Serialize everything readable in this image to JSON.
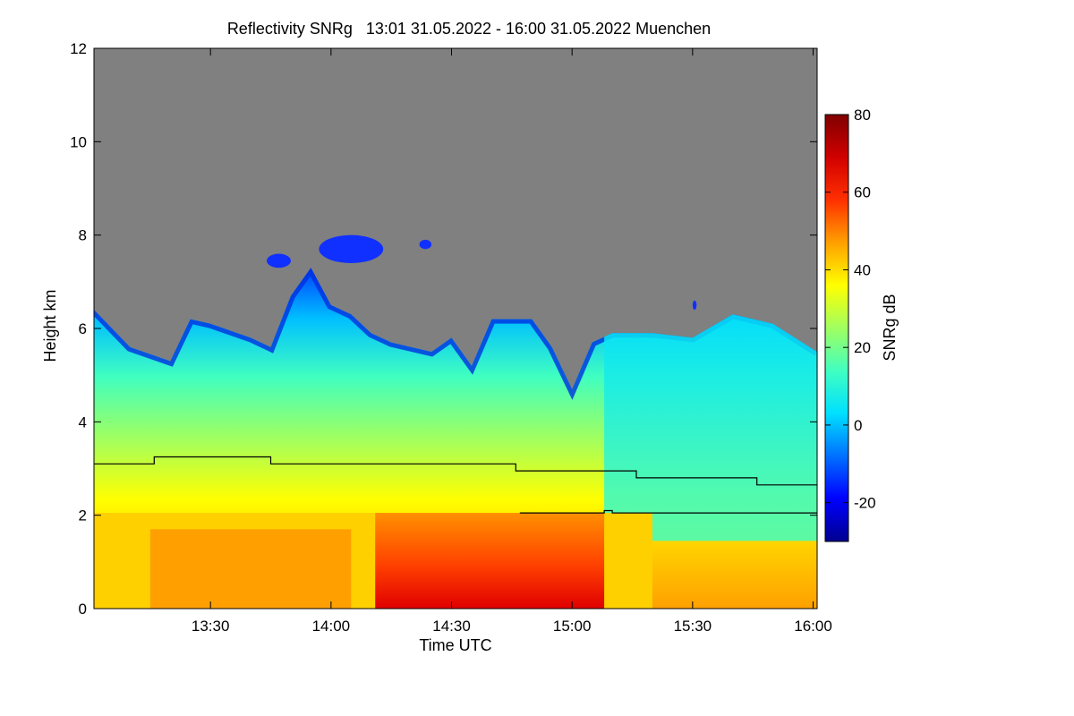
{
  "chart_data": {
    "type": "heatmap",
    "title": "Reflectivity SNRg   13:01 31.05.2022 - 16:00 31.05.2022 Muenchen",
    "xlabel": "Time UTC",
    "ylabel": "Height km",
    "colorbar_label": "SNRg dB",
    "xlim": [
      "13:01",
      "16:01"
    ],
    "ylim": [
      0,
      12
    ],
    "x_ticks": [
      "13:30",
      "14:00",
      "14:30",
      "15:00",
      "15:30",
      "16:00"
    ],
    "y_ticks": [
      "0",
      "2",
      "4",
      "6",
      "8",
      "10",
      "12"
    ],
    "colorbar_range": [
      -30,
      80
    ],
    "colorbar_ticks": [
      "-20",
      "0",
      "20",
      "40",
      "60",
      "80"
    ],
    "background_color": "#808080",
    "colormap": [
      "#00008f",
      "#0000ff",
      "#0070ff",
      "#00e0ff",
      "#40ffc0",
      "#a0ff60",
      "#ffff00",
      "#ffa000",
      "#ff3000",
      "#d00000",
      "#800000"
    ],
    "cloud_top_km": [
      [
        "13:01",
        6.4
      ],
      [
        "13:10",
        5.6
      ],
      [
        "13:20",
        5.3
      ],
      [
        "13:25",
        6.2
      ],
      [
        "13:30",
        6.1
      ],
      [
        "13:40",
        5.8
      ],
      [
        "13:45",
        5.6
      ],
      [
        "13:50",
        6.7
      ],
      [
        "13:55",
        7.3
      ],
      [
        "14:00",
        6.5
      ],
      [
        "14:05",
        6.3
      ],
      [
        "14:10",
        5.9
      ],
      [
        "14:15",
        5.7
      ],
      [
        "14:20",
        5.6
      ],
      [
        "14:25",
        5.5
      ],
      [
        "14:30",
        5.8
      ],
      [
        "14:35",
        5.2
      ],
      [
        "14:40",
        6.2
      ],
      [
        "14:50",
        6.2
      ],
      [
        "14:55",
        5.6
      ],
      [
        "15:00",
        4.7
      ],
      [
        "15:05",
        5.7
      ],
      [
        "15:10",
        5.9
      ],
      [
        "15:20",
        5.9
      ],
      [
        "15:30",
        5.8
      ],
      [
        "15:40",
        6.3
      ],
      [
        "15:50",
        6.1
      ],
      [
        "16:01",
        5.5
      ]
    ],
    "elevated_echoes": [
      {
        "x0": "13:44",
        "x1": "13:50",
        "y0": 7.3,
        "y1": 7.6
      },
      {
        "x0": "13:57",
        "x1": "14:13",
        "y0": 7.4,
        "y1": 8.0
      },
      {
        "x0": "14:22",
        "x1": "14:25",
        "y0": 7.7,
        "y1": 7.9
      },
      {
        "x0": "15:30",
        "x1": "15:31",
        "y0": 6.4,
        "y1": 6.6
      }
    ],
    "series": [
      {
        "points": [
          [
            "13:01",
            3.1
          ],
          [
            "13:16",
            3.1
          ],
          [
            "13:16",
            3.25
          ],
          [
            "13:45",
            3.25
          ],
          [
            "13:45",
            3.1
          ],
          [
            "14:46",
            3.1
          ],
          [
            "14:46",
            2.95
          ],
          [
            "15:16",
            2.95
          ],
          [
            "15:16",
            2.8
          ],
          [
            "15:46",
            2.8
          ],
          [
            "15:46",
            2.65
          ],
          [
            "16:01",
            2.65
          ]
        ]
      },
      {
        "points": [
          [
            "14:47",
            2.05
          ],
          [
            "15:08",
            2.05
          ],
          [
            "15:08",
            2.1
          ],
          [
            "15:10",
            2.1
          ],
          [
            "15:10",
            2.05
          ],
          [
            "16:01",
            2.05
          ]
        ]
      }
    ]
  }
}
